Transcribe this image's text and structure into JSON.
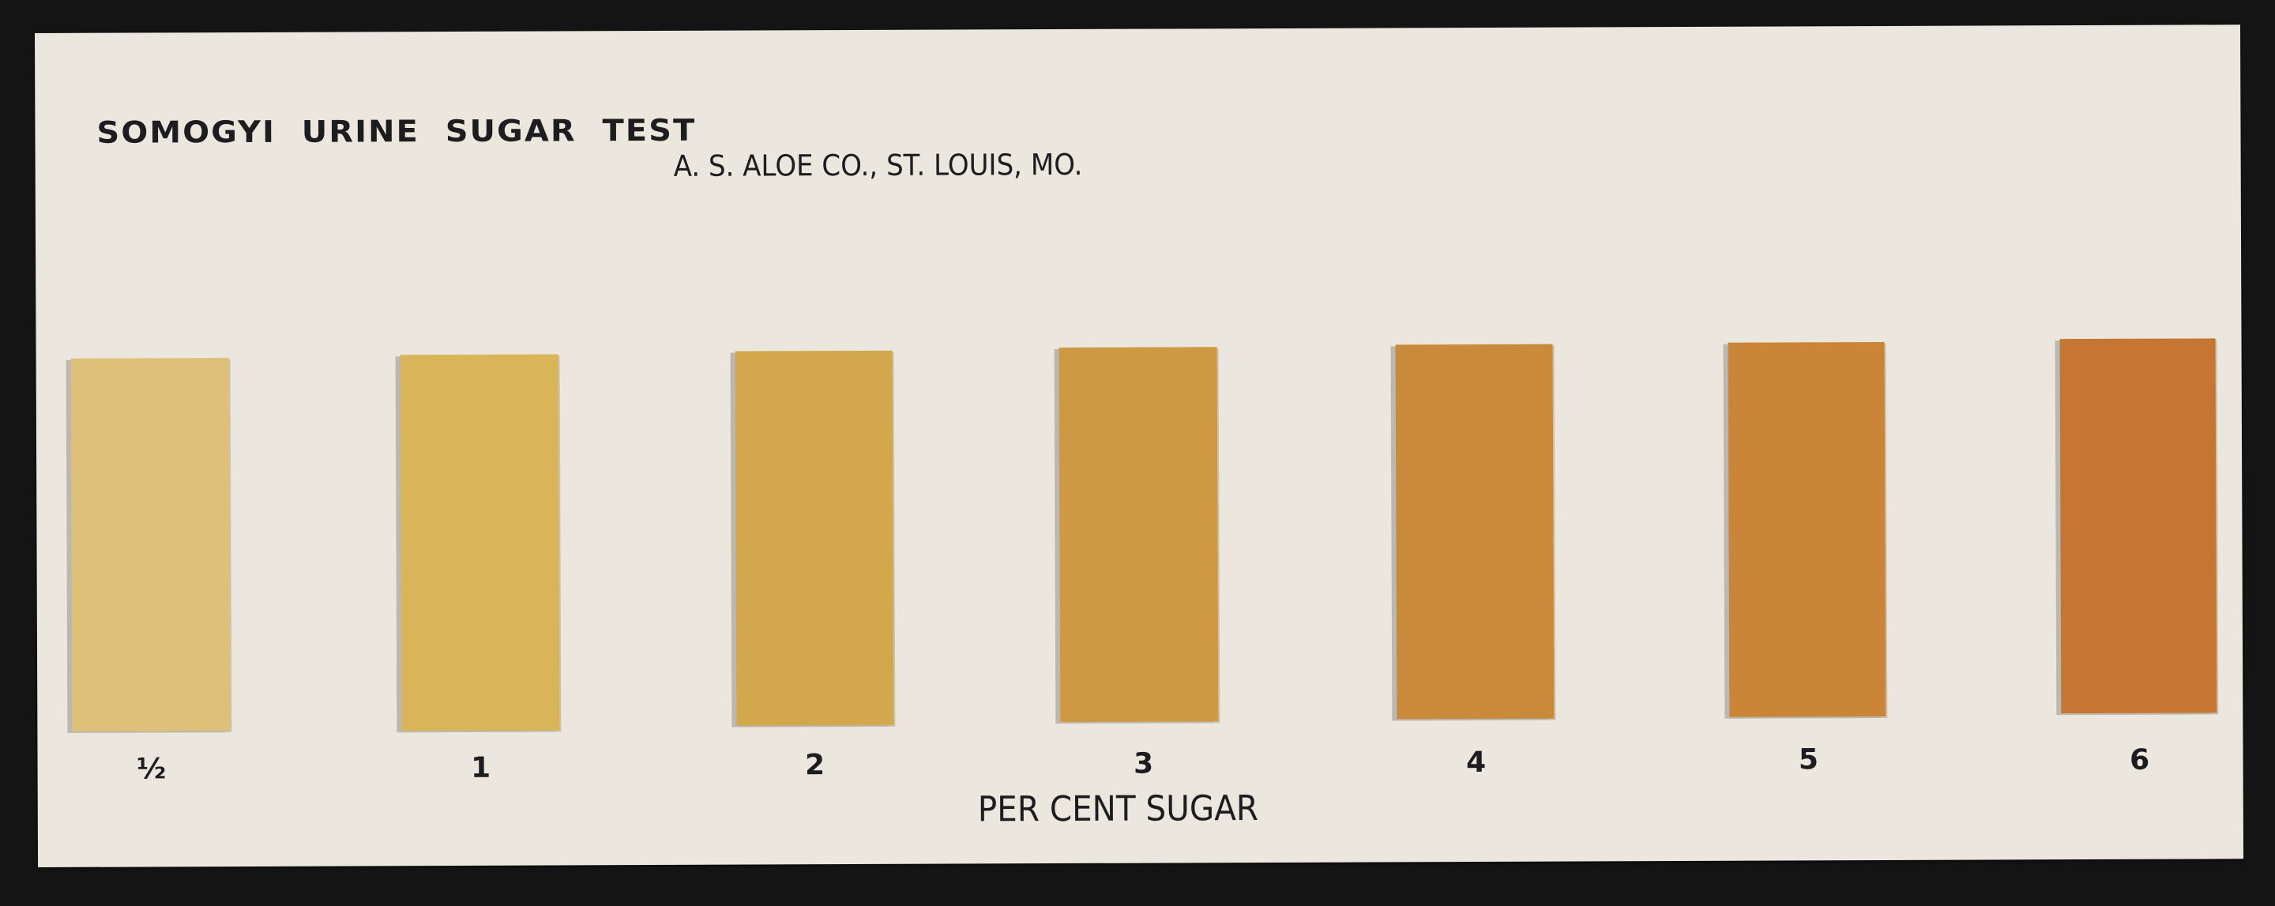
{
  "card": {
    "title": "SOMOGYI URINE SUGAR TEST",
    "maker": "A. S. ALOE CO., ST. LOUIS, MO.",
    "axis_label": "PER CENT SUGAR",
    "background_color": "#ebe7de",
    "swatches": [
      {
        "label": "½",
        "color": "#dfc078"
      },
      {
        "label": "1",
        "color": "#d9b459"
      },
      {
        "label": "2",
        "color": "#d3a84c"
      },
      {
        "label": "3",
        "color": "#cf9843"
      },
      {
        "label": "4",
        "color": "#c98b3b"
      },
      {
        "label": "5",
        "color": "#cb8538"
      },
      {
        "label": "6",
        "color": "#c57632"
      }
    ]
  }
}
